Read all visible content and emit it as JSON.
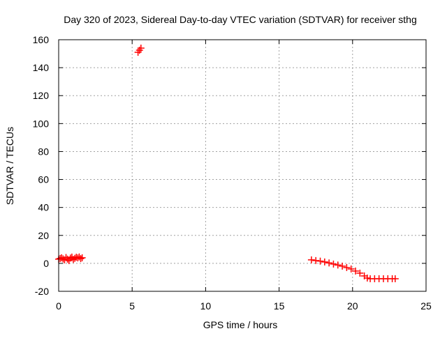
{
  "chart_data": {
    "type": "scatter",
    "title": "Day 320 of 2023, Sidereal Day-to-day VTEC variation (SDTVAR) for receiver sthg",
    "xlabel": "GPS time / hours",
    "ylabel": "SDTVAR / TECUs",
    "xlim": [
      0,
      25
    ],
    "ylim": [
      -20,
      160
    ],
    "xticks": [
      0,
      5,
      10,
      15,
      20,
      25
    ],
    "yticks": [
      -20,
      0,
      20,
      40,
      60,
      80,
      100,
      120,
      140,
      160
    ],
    "grid": true,
    "legend": "none",
    "marker": "plus",
    "color": "#ff0000",
    "series": [
      {
        "values": [
          [
            0.0,
            3.0
          ],
          [
            0.1,
            3.5
          ],
          [
            0.2,
            4.0
          ],
          [
            0.3,
            3.2
          ],
          [
            0.4,
            2.5
          ],
          [
            0.5,
            4.2
          ],
          [
            0.6,
            3.0
          ],
          [
            0.7,
            2.0
          ],
          [
            0.8,
            3.8
          ],
          [
            0.9,
            4.5
          ],
          [
            1.0,
            2.8
          ],
          [
            1.1,
            3.6
          ],
          [
            1.2,
            4.4
          ],
          [
            1.3,
            3.9
          ],
          [
            1.4,
            4.6
          ],
          [
            1.5,
            3.4
          ],
          [
            1.6,
            4.0
          ],
          [
            5.4,
            151.0
          ],
          [
            5.5,
            152.5
          ],
          [
            5.6,
            154.0
          ],
          [
            17.2,
            2.5
          ],
          [
            17.5,
            2.0
          ],
          [
            17.8,
            1.6
          ],
          [
            18.1,
            1.0
          ],
          [
            18.4,
            0.3
          ],
          [
            18.7,
            -0.5
          ],
          [
            19.0,
            -1.2
          ],
          [
            19.3,
            -2.0
          ],
          [
            19.6,
            -3.0
          ],
          [
            19.9,
            -4.0
          ],
          [
            20.2,
            -5.5
          ],
          [
            20.5,
            -7.0
          ],
          [
            20.8,
            -9.0
          ],
          [
            21.0,
            -10.5
          ],
          [
            21.2,
            -11.0
          ],
          [
            21.5,
            -11.0
          ],
          [
            21.8,
            -11.0
          ],
          [
            22.1,
            -11.0
          ],
          [
            22.4,
            -11.0
          ],
          [
            22.7,
            -11.0
          ],
          [
            22.9,
            -11.0
          ]
        ]
      }
    ]
  }
}
